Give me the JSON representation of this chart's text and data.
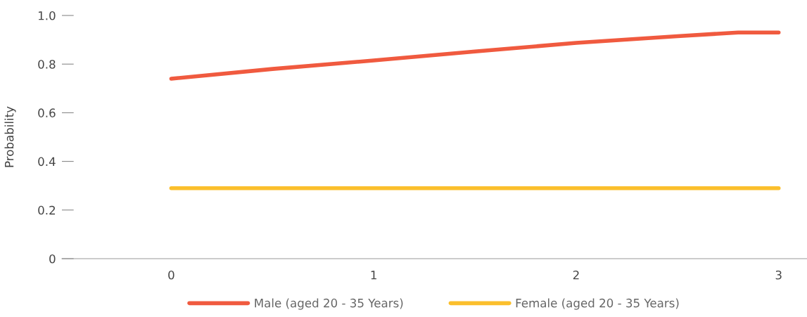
{
  "chart_data": {
    "type": "line",
    "ylabel": "Probability",
    "x": [
      0,
      0.5,
      1,
      1.5,
      2,
      2.5,
      2.8,
      3
    ],
    "series": [
      {
        "name": "Male (aged 20 - 35 Years)",
        "color": "#f05a3f",
        "values": [
          0.74,
          0.78,
          0.815,
          0.852,
          0.887,
          0.915,
          0.93,
          0.93
        ]
      },
      {
        "name": "Female (aged 20 - 35 Years)",
        "color": "#fbbf2c",
        "values": [
          0.29,
          0.29,
          0.29,
          0.29,
          0.29,
          0.29,
          0.29,
          0.29
        ]
      }
    ],
    "xlim": [
      -0.54,
      3.14
    ],
    "ylim": [
      0,
      1.0
    ],
    "xticks": [
      0,
      1,
      2,
      3
    ],
    "yticks": [
      {
        "value": 0,
        "label": "0"
      },
      0.2,
      0.4,
      0.6,
      0.8,
      {
        "value": 1.0,
        "label": "1.0"
      }
    ],
    "grid": false,
    "legend": "bottom",
    "marker": "none",
    "line_style": "solid"
  }
}
